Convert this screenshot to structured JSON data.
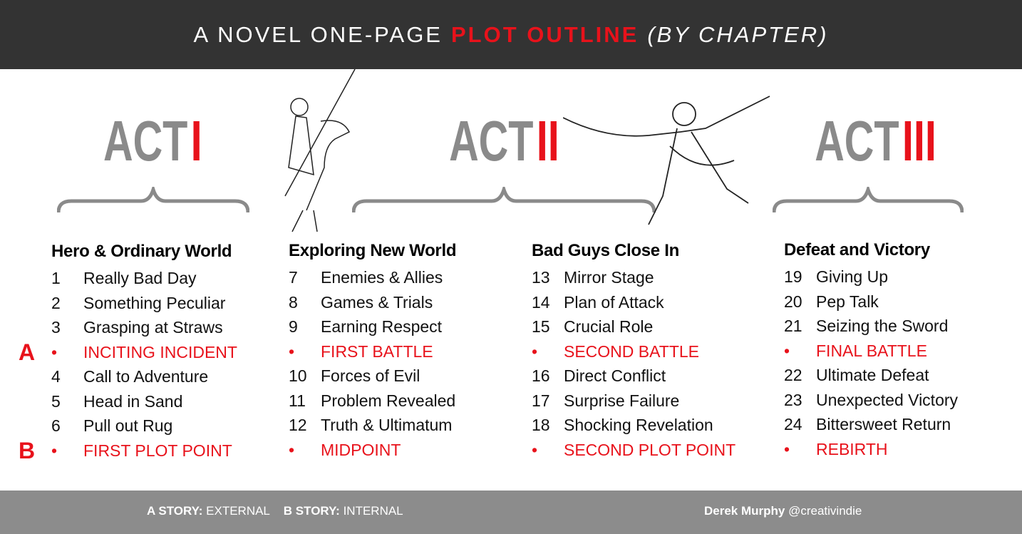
{
  "title": {
    "part1": "A NOVEL ONE-PAGE",
    "part2": "PLOT OUTLINE",
    "part3": "(BY CHAPTER)"
  },
  "acts": [
    {
      "word": "ACT",
      "numeral": "I"
    },
    {
      "word": "ACT",
      "numeral": "II"
    },
    {
      "word": "ACT",
      "numeral": "III"
    }
  ],
  "columns": [
    {
      "heading": "Hero & Ordinary World",
      "rows": [
        {
          "num": "1",
          "label": "Really Bad Day"
        },
        {
          "num": "2",
          "label": "Something Peculiar"
        },
        {
          "num": "3",
          "label": "Grasping at Straws"
        },
        {
          "num": "•",
          "label": "INCITING INCIDENT",
          "highlight": true,
          "marker": "A"
        },
        {
          "num": "4",
          "label": "Call to Adventure"
        },
        {
          "num": "5",
          "label": "Head in Sand"
        },
        {
          "num": "6",
          "label": "Pull out Rug"
        },
        {
          "num": "•",
          "label": "FIRST PLOT POINT",
          "highlight": true,
          "marker": "B"
        }
      ]
    },
    {
      "heading": "Exploring New World",
      "rows": [
        {
          "num": "7",
          "label": "Enemies & Allies"
        },
        {
          "num": "8",
          "label": "Games & Trials"
        },
        {
          "num": "9",
          "label": "Earning Respect"
        },
        {
          "num": "•",
          "label": "FIRST BATTLE",
          "highlight": true
        },
        {
          "num": "10",
          "label": "Forces of Evil"
        },
        {
          "num": "11",
          "label": "Problem Revealed"
        },
        {
          "num": "12",
          "label": "Truth & Ultimatum"
        },
        {
          "num": "•",
          "label": "MIDPOINT",
          "highlight": true
        }
      ]
    },
    {
      "heading": "Bad Guys Close In",
      "rows": [
        {
          "num": "13",
          "label": "Mirror Stage"
        },
        {
          "num": "14",
          "label": "Plan of Attack"
        },
        {
          "num": "15",
          "label": "Crucial Role"
        },
        {
          "num": "•",
          "label": "SECOND BATTLE",
          "highlight": true
        },
        {
          "num": "16",
          "label": "Direct Conflict"
        },
        {
          "num": "17",
          "label": "Surprise Failure"
        },
        {
          "num": "18",
          "label": "Shocking Revelation"
        },
        {
          "num": "•",
          "label": "SECOND PLOT POINT",
          "highlight": true
        }
      ]
    },
    {
      "heading": "Defeat and Victory",
      "rows": [
        {
          "num": "19",
          "label": "Giving Up"
        },
        {
          "num": "20",
          "label": "Pep Talk"
        },
        {
          "num": "21",
          "label": "Seizing the Sword"
        },
        {
          "num": "•",
          "label": "FINAL BATTLE",
          "highlight": true
        },
        {
          "num": "22",
          "label": "Ultimate Defeat"
        },
        {
          "num": "23",
          "label": "Unexpected Victory"
        },
        {
          "num": "24",
          "label": "Bittersweet Return"
        },
        {
          "num": "•",
          "label": "REBIRTH",
          "highlight": true
        }
      ]
    }
  ],
  "footer": {
    "a_story_label": "A STORY:",
    "a_story_value": "EXTERNAL",
    "b_story_label": "B STORY:",
    "b_story_value": "INTERNAL",
    "author": "Derek Murphy",
    "handle": "@creativindie"
  },
  "colors": {
    "accent": "#e8121b",
    "header_bg": "#333333",
    "footer_bg": "#8c8c8c",
    "act_gray": "#8a8a8a"
  }
}
